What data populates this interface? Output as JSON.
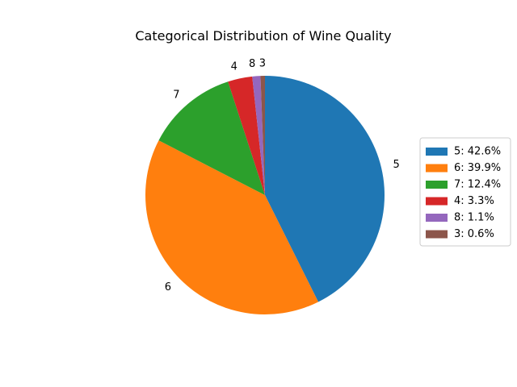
{
  "chart_data": {
    "type": "pie",
    "title": "Categorical Distribution of Wine Quality",
    "categories": [
      "5",
      "6",
      "7",
      "4",
      "8",
      "3"
    ],
    "values": [
      42.6,
      39.9,
      12.4,
      3.3,
      1.1,
      0.6
    ],
    "colors": [
      "#1f77b4",
      "#ff7f0e",
      "#2ca02c",
      "#d62728",
      "#9467bd",
      "#8c564b"
    ],
    "legend": {
      "placement": "right",
      "entries": [
        "5: 42.6%",
        "6: 39.9%",
        "7: 12.4%",
        "4: 3.3%",
        "8: 1.1%",
        "3: 0.6%"
      ]
    },
    "start_angle_deg": 90,
    "direction": "clockwise",
    "grid": false
  }
}
